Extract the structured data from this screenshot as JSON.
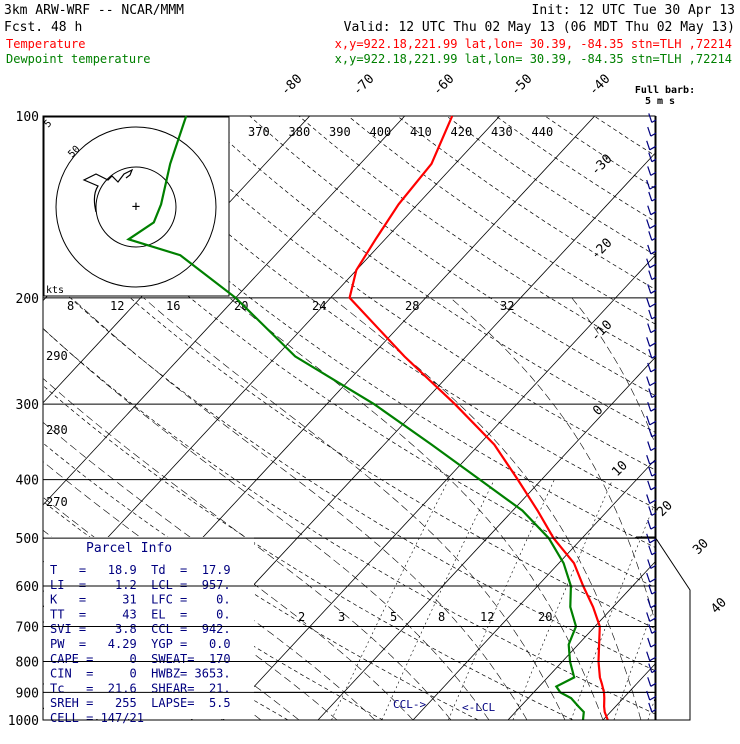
{
  "header": {
    "model": "3km ARW-WRF -- NCAR/MMM",
    "init": "Init: 12 UTC Tue 30 Apr 13",
    "fcst": "Fcst.   48 h",
    "valid": "Valid: 12 UTC Thu 02 May 13 (06 MDT Thu 02 May 13)",
    "temp_label": "Temperature",
    "temp_loc": "x,y=922.18,221.99   lat,lon= 30.39, -84.35   stn=TLH ,72214",
    "dew_label": "Dewpoint temperature",
    "dew_loc": "x,y=922.18,221.99   lat,lon= 30.39, -84.35   stn=TLH ,72214"
  },
  "colors": {
    "temperature": "#ff0000",
    "dewpoint": "#008000",
    "labels_red": "#ff0000",
    "labels_green": "#008000",
    "parcel_info": "#000080",
    "wind_barbs": "#000080",
    "grid": "#000000"
  },
  "wind": {
    "legend_title": "Full barb:",
    "legend_value": "5 m s"
  },
  "hodograph": {
    "ring_label": "50",
    "ring_label2": "5",
    "units": "kts"
  },
  "parcel_info": {
    "title": "Parcel Info",
    "rows": [
      "T   =   18.9  Td  =  17.9",
      "LI  =    1.2  LCL =  957.",
      "K   =     31  LFC =    0.",
      "TT  =     43  EL  =    0.",
      "SVI =    3.8  CCL =  942.",
      "PW  =   4.29  YGP =   0.0",
      "CAPE =     0  SWEAT=  170",
      "CIN  =     0  HWBZ= 3653.",
      "Tc   =  21.6  SHEAR=  21.",
      "SREH =   255  LAPSE=  5.5",
      "CELL = 147/21"
    ],
    "ccl_marker": "CCL->",
    "lcl_marker": "<-LCL"
  },
  "chart_data": {
    "type": "line",
    "diagram": "skew-T log-P",
    "pressure_levels": [
      100,
      200,
      300,
      400,
      500,
      600,
      700,
      800,
      900,
      1000
    ],
    "pressure_labels": [
      "100",
      "200",
      "300",
      "400",
      "500",
      "600",
      "700",
      "800",
      "900",
      "1000"
    ],
    "isotherm_labels": [
      "-80",
      "-70",
      "-60",
      "-50",
      "-40",
      "-30",
      "-20",
      "-10",
      "0",
      "10",
      "20",
      "30",
      "40"
    ],
    "theta_labels": [
      "370",
      "380",
      "390",
      "400",
      "410",
      "420",
      "430",
      "440"
    ],
    "theta_low_labels": [
      "290",
      "280",
      "270"
    ],
    "mixing_ratio_labels_upper": [
      "8",
      "12",
      "16",
      "20",
      "24",
      "28",
      "32"
    ],
    "mixing_ratio_labels_lower": [
      "2",
      "3",
      "5",
      "8",
      "12",
      "20"
    ],
    "series": [
      {
        "name": "Temperature",
        "points": [
          [
            1000,
            20.5
          ],
          [
            970,
            19.4
          ],
          [
            950,
            18.8
          ],
          [
            920,
            18.0
          ],
          [
            900,
            17.4
          ],
          [
            870,
            16.3
          ],
          [
            850,
            15.5
          ],
          [
            800,
            13.8
          ],
          [
            750,
            12.2
          ],
          [
            700,
            10.5
          ],
          [
            650,
            7.9
          ],
          [
            600,
            4.8
          ],
          [
            550,
            1.6
          ],
          [
            500,
            -3.0
          ],
          [
            450,
            -7.4
          ],
          [
            400,
            -12.5
          ],
          [
            350,
            -18.4
          ],
          [
            300,
            -26.5
          ],
          [
            250,
            -36.5
          ],
          [
            200,
            -48.0
          ],
          [
            180,
            -50.0
          ],
          [
            160,
            -51.0
          ],
          [
            140,
            -52.0
          ],
          [
            120,
            -52.5
          ],
          [
            100,
            -55.0
          ]
        ]
      },
      {
        "name": "Dewpoint temperature",
        "points": [
          [
            1000,
            17.9
          ],
          [
            970,
            17.2
          ],
          [
            950,
            16.1
          ],
          [
            920,
            14.5
          ],
          [
            900,
            12.8
          ],
          [
            880,
            11.8
          ],
          [
            850,
            12.8
          ],
          [
            800,
            10.8
          ],
          [
            750,
            9.0
          ],
          [
            700,
            8.0
          ],
          [
            650,
            5.5
          ],
          [
            600,
            3.5
          ],
          [
            550,
            0.5
          ],
          [
            500,
            -3.5
          ],
          [
            450,
            -9.0
          ],
          [
            400,
            -16.5
          ],
          [
            350,
            -25.0
          ],
          [
            300,
            -35.0
          ],
          [
            250,
            -48.0
          ],
          [
            200,
            -60.0
          ],
          [
            170,
            -70.0
          ],
          [
            160,
            -77.0
          ],
          [
            150,
            -76.0
          ],
          [
            140,
            -77.0
          ],
          [
            120,
            -80.0
          ],
          [
            100,
            -83.0
          ]
        ]
      }
    ],
    "xlim": [
      -40,
      40
    ],
    "ylim": [
      1000,
      100
    ],
    "yscale": "log"
  }
}
